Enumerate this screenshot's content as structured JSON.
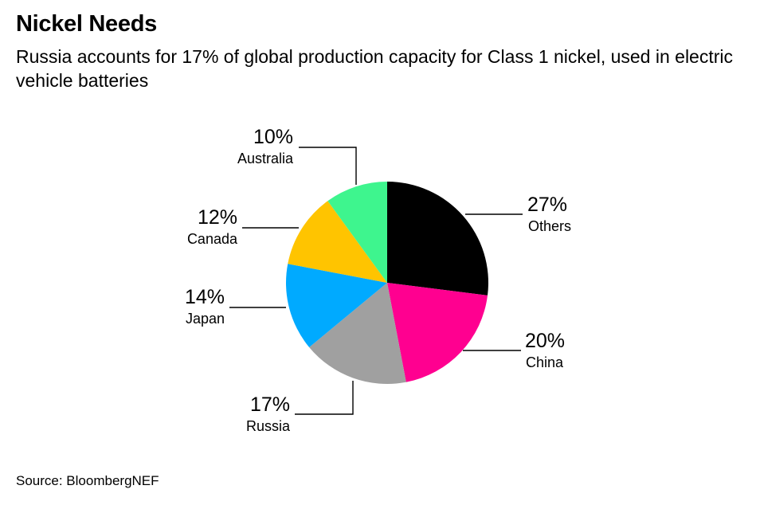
{
  "chart_data": {
    "type": "pie",
    "title": "Nickel Needs",
    "subtitle": "Russia accounts for 17% of global production capacity for Class 1 nickel, used in electric vehicle batteries",
    "source": "Source: BloombergNEF",
    "start": "top",
    "direction": "clockwise",
    "slices": [
      {
        "label": "Others",
        "value": 27,
        "value_label": "27%",
        "color": "#000000"
      },
      {
        "label": "China",
        "value": 20,
        "value_label": "20%",
        "color": "#ff0090"
      },
      {
        "label": "Russia",
        "value": 17,
        "value_label": "17%",
        "color": "#a0a0a0"
      },
      {
        "label": "Japan",
        "value": 14,
        "value_label": "14%",
        "color": "#00aaff"
      },
      {
        "label": "Canada",
        "value": 12,
        "value_label": "12%",
        "color": "#ffc400"
      },
      {
        "label": "Australia",
        "value": 10,
        "value_label": "10%",
        "color": "#3ef58e"
      }
    ]
  }
}
